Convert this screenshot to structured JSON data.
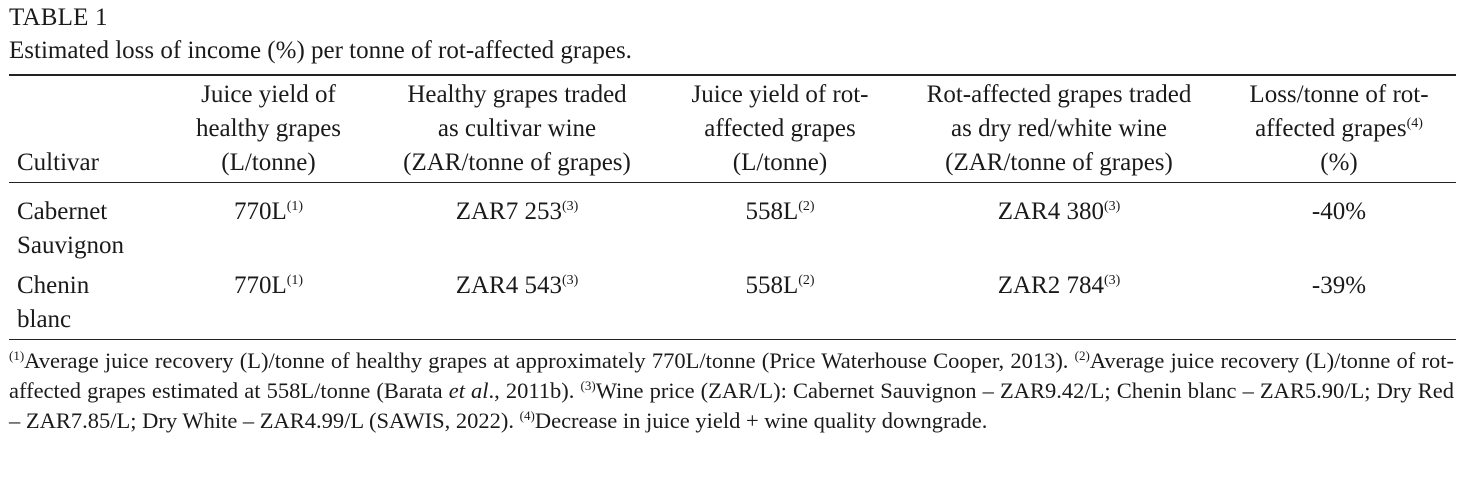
{
  "table": {
    "label": "TABLE 1",
    "caption": "Estimated loss of income (%) per tonne of rot-affected grapes.",
    "headers": [
      {
        "line1": "",
        "line2": "",
        "line3": "Cultivar",
        "sup": ""
      },
      {
        "line1": "Juice yield of",
        "line2": "healthy grapes",
        "line3": "(L/tonne)",
        "sup": ""
      },
      {
        "line1": "Healthy grapes traded",
        "line2": "as cultivar wine",
        "line3": "(ZAR/tonne of grapes)",
        "sup": ""
      },
      {
        "line1": "Juice yield of rot-",
        "line2": "affected grapes",
        "line3": "(L/tonne)",
        "sup": ""
      },
      {
        "line1": "Rot-affected grapes traded",
        "line2": "as dry red/white wine",
        "line3": "(ZAR/tonne of grapes)",
        "sup": ""
      },
      {
        "line1": "Loss/tonne of rot-",
        "line2": "affected grapes",
        "line3": "(%)",
        "sup": "(4)"
      }
    ],
    "rows": [
      {
        "cultivar_line1": "Cabernet",
        "cultivar_line2": "Sauvignon",
        "healthy_yield": "770L",
        "healthy_yield_sup": "(1)",
        "healthy_price": "ZAR7 253",
        "healthy_price_sup": "(3)",
        "rot_yield": "558L",
        "rot_yield_sup": "(2)",
        "rot_price": "ZAR4 380",
        "rot_price_sup": "(3)",
        "loss": "-40%"
      },
      {
        "cultivar_line1": "Chenin",
        "cultivar_line2": "blanc",
        "healthy_yield": "770L",
        "healthy_yield_sup": "(1)",
        "healthy_price": "ZAR4 543",
        "healthy_price_sup": "(3)",
        "rot_yield": "558L",
        "rot_yield_sup": "(2)",
        "rot_price": "ZAR2 784",
        "rot_price_sup": "(3)",
        "loss": "-39%"
      }
    ]
  },
  "footnotes": {
    "fn1_mark": "(1)",
    "fn1_text": "Average juice recovery (L)/tonne of healthy grapes at approximately 770L/tonne (Price Waterhouse Cooper, 2013). ",
    "fn2_mark": "(2)",
    "fn2_text_a": "Average juice recovery (L)/tonne of rot-affected grapes estimated at 558L/tonne (Barata ",
    "fn2_ital": "et al",
    "fn2_text_b": "., 2011b). ",
    "fn3_mark": "(3)",
    "fn3_text": "Wine price (ZAR/L): Cabernet Sauvignon – ZAR9.42/L; Chenin blanc – ZAR5.90/L; Dry Red – ZAR7.85/L; Dry White – ZAR4.99/L (SAWIS, 2022). ",
    "fn4_mark": "(4)",
    "fn4_text": "Decrease in juice yield + wine quality downgrade."
  }
}
